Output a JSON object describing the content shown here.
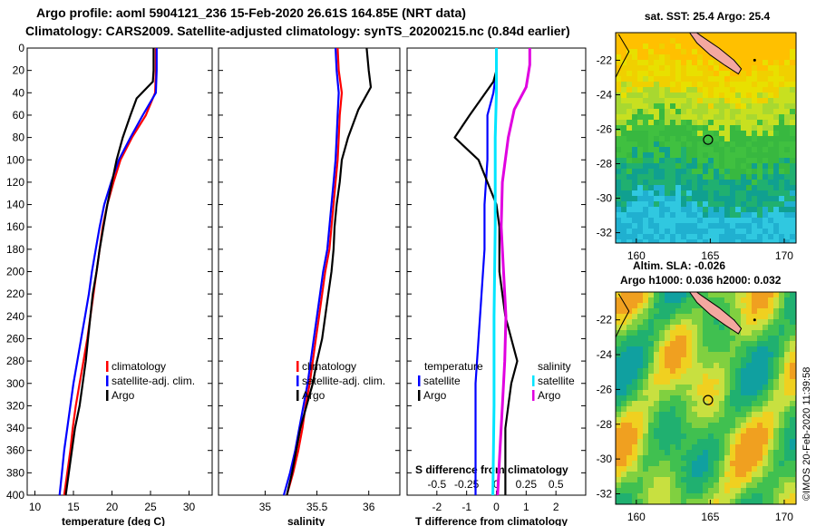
{
  "header": {
    "line1": "Argo profile: aoml 5904121_236 15-Feb-2020 26.61S 164.85E (NRT data)",
    "line2": "Climatology: CARS2009. Satellite-adjusted climatology: synTS_20200215.nc (0.84d earlier)"
  },
  "footer": {
    "credit": "©IMOS 20-Feb-2020 11:39:58"
  },
  "colors": {
    "climatology": "#ff0000",
    "satellite": "#0000ff",
    "argo": "#000000",
    "sat_salinity": "#00e5ff",
    "argo_salinity": "#e000e0"
  },
  "chart_data": [
    {
      "id": "temperature",
      "type": "line",
      "xlabel": "temperature (deg C)",
      "xlim": [
        9,
        33
      ],
      "xticks": [
        10,
        15,
        20,
        25,
        30
      ],
      "ylim": [
        0,
        400
      ],
      "yticks": [
        0,
        20,
        40,
        60,
        80,
        100,
        120,
        140,
        160,
        180,
        200,
        220,
        240,
        260,
        280,
        300,
        320,
        340,
        360,
        380,
        400
      ],
      "legend": [
        "climatology",
        "satellite-adj. clim.",
        "Argo"
      ],
      "series": [
        {
          "name": "climatology",
          "color": "#ff0000",
          "points": [
            [
              25.7,
              0
            ],
            [
              25.7,
              20
            ],
            [
              25.6,
              40
            ],
            [
              24.4,
              60
            ],
            [
              22.6,
              80
            ],
            [
              21.1,
              100
            ],
            [
              20.2,
              120
            ],
            [
              19.4,
              140
            ],
            [
              18.8,
              160
            ],
            [
              18.4,
              180
            ],
            [
              18.0,
              200
            ],
            [
              17.6,
              220
            ],
            [
              17.2,
              240
            ],
            [
              16.8,
              260
            ],
            [
              16.3,
              280
            ],
            [
              15.8,
              300
            ],
            [
              15.3,
              320
            ],
            [
              14.9,
              340
            ],
            [
              14.6,
              360
            ],
            [
              14.2,
              380
            ],
            [
              13.8,
              400
            ]
          ]
        },
        {
          "name": "satellite-adj. clim.",
          "color": "#0000ff",
          "points": [
            [
              25.8,
              0
            ],
            [
              25.8,
              20
            ],
            [
              25.7,
              40
            ],
            [
              24.0,
              60
            ],
            [
              22.4,
              80
            ],
            [
              20.9,
              100
            ],
            [
              19.9,
              120
            ],
            [
              19.0,
              140
            ],
            [
              18.4,
              160
            ],
            [
              17.9,
              180
            ],
            [
              17.4,
              200
            ],
            [
              17.0,
              220
            ],
            [
              16.5,
              240
            ],
            [
              16.0,
              260
            ],
            [
              15.5,
              280
            ],
            [
              15.0,
              300
            ],
            [
              14.6,
              320
            ],
            [
              14.2,
              340
            ],
            [
              13.8,
              360
            ],
            [
              13.5,
              380
            ],
            [
              13.2,
              400
            ]
          ]
        },
        {
          "name": "Argo",
          "color": "#000000",
          "points": [
            [
              25.4,
              0
            ],
            [
              25.4,
              20
            ],
            [
              25.3,
              30
            ],
            [
              23.2,
              45
            ],
            [
              22.4,
              60
            ],
            [
              21.4,
              80
            ],
            [
              20.6,
              100
            ],
            [
              20.0,
              120
            ],
            [
              19.4,
              140
            ],
            [
              18.9,
              160
            ],
            [
              18.4,
              180
            ],
            [
              18.0,
              200
            ],
            [
              17.5,
              220
            ],
            [
              17.2,
              240
            ],
            [
              16.9,
              260
            ],
            [
              16.6,
              280
            ],
            [
              16.2,
              300
            ],
            [
              15.8,
              320
            ],
            [
              15.2,
              340
            ],
            [
              14.8,
              360
            ],
            [
              14.4,
              380
            ],
            [
              14.0,
              400
            ]
          ]
        }
      ]
    },
    {
      "id": "salinity",
      "type": "line",
      "xlabel": "salinity",
      "xlim": [
        34.55,
        36.3
      ],
      "xticks": [
        35,
        35.5,
        36
      ],
      "xtick_labels": [
        "35",
        "35.5",
        "36"
      ],
      "ylim": [
        0,
        400
      ],
      "legend": [
        "climatology",
        "satellite-adj. clim.",
        "Argo"
      ],
      "series": [
        {
          "name": "climatology",
          "color": "#ff0000",
          "points": [
            [
              35.7,
              0
            ],
            [
              35.71,
              20
            ],
            [
              35.74,
              40
            ],
            [
              35.72,
              60
            ],
            [
              35.71,
              80
            ],
            [
              35.7,
              100
            ],
            [
              35.68,
              120
            ],
            [
              35.66,
              140
            ],
            [
              35.64,
              160
            ],
            [
              35.62,
              180
            ],
            [
              35.58,
              200
            ],
            [
              35.55,
              220
            ],
            [
              35.52,
              240
            ],
            [
              35.49,
              260
            ],
            [
              35.46,
              280
            ],
            [
              35.43,
              300
            ],
            [
              35.39,
              320
            ],
            [
              35.36,
              340
            ],
            [
              35.32,
              360
            ],
            [
              35.27,
              380
            ],
            [
              35.21,
              400
            ]
          ]
        },
        {
          "name": "satellite-adj. clim.",
          "color": "#0000ff",
          "points": [
            [
              35.68,
              0
            ],
            [
              35.69,
              20
            ],
            [
              35.71,
              40
            ],
            [
              35.7,
              60
            ],
            [
              35.69,
              80
            ],
            [
              35.68,
              100
            ],
            [
              35.66,
              120
            ],
            [
              35.64,
              140
            ],
            [
              35.62,
              160
            ],
            [
              35.6,
              180
            ],
            [
              35.56,
              200
            ],
            [
              35.53,
              220
            ],
            [
              35.5,
              240
            ],
            [
              35.47,
              260
            ],
            [
              35.44,
              280
            ],
            [
              35.41,
              300
            ],
            [
              35.37,
              320
            ],
            [
              35.33,
              340
            ],
            [
              35.29,
              360
            ],
            [
              35.24,
              380
            ],
            [
              35.18,
              400
            ]
          ]
        },
        {
          "name": "Argo",
          "color": "#000000",
          "points": [
            [
              35.98,
              0
            ],
            [
              36.0,
              20
            ],
            [
              36.02,
              35
            ],
            [
              35.9,
              55
            ],
            [
              35.8,
              80
            ],
            [
              35.74,
              100
            ],
            [
              35.72,
              120
            ],
            [
              35.69,
              140
            ],
            [
              35.67,
              160
            ],
            [
              35.66,
              180
            ],
            [
              35.64,
              200
            ],
            [
              35.61,
              220
            ],
            [
              35.58,
              240
            ],
            [
              35.55,
              260
            ],
            [
              35.5,
              280
            ],
            [
              35.46,
              300
            ],
            [
              35.4,
              320
            ],
            [
              35.34,
              340
            ],
            [
              35.3,
              360
            ],
            [
              35.26,
              380
            ],
            [
              35.21,
              400
            ]
          ]
        }
      ]
    },
    {
      "id": "difference",
      "type": "line",
      "xlabel": "T difference from climatology",
      "xlim": [
        -3,
        3
      ],
      "xticks": [
        -2,
        -1,
        0,
        1,
        2
      ],
      "ylim": [
        0,
        400
      ],
      "secondary_axis": {
        "label": "S difference from climatology",
        "ticks": [
          -0.5,
          -0.25,
          0,
          0.25,
          0.5
        ],
        "tick_labels": [
          "-0.5",
          "-0.25",
          "0",
          "0.25",
          "0.5"
        ],
        "xlim": [
          -0.75,
          0.75
        ]
      },
      "legend_temperature": {
        "title": "temperature",
        "items": [
          "satellite",
          "Argo"
        ]
      },
      "legend_salinity": {
        "title": "salinity",
        "items": [
          "satellite",
          "Argo"
        ]
      },
      "series": [
        {
          "name": "temperature satellite",
          "color": "#0000ff",
          "points": [
            [
              0.0,
              0
            ],
            [
              0.0,
              20
            ],
            [
              -0.1,
              40
            ],
            [
              -0.3,
              60
            ],
            [
              -0.3,
              80
            ],
            [
              -0.3,
              100
            ],
            [
              -0.4,
              140
            ],
            [
              -0.4,
              180
            ],
            [
              -0.5,
              220
            ],
            [
              -0.6,
              260
            ],
            [
              -0.7,
              300
            ],
            [
              -0.7,
              340
            ],
            [
              -0.7,
              380
            ],
            [
              -0.7,
              400
            ]
          ]
        },
        {
          "name": "temperature Argo",
          "color": "#000000",
          "points": [
            [
              0.0,
              0
            ],
            [
              0.0,
              20
            ],
            [
              -0.1,
              30
            ],
            [
              -0.5,
              45
            ],
            [
              -0.9,
              60
            ],
            [
              -1.4,
              80
            ],
            [
              -0.6,
              100
            ],
            [
              -0.3,
              120
            ],
            [
              0.0,
              140
            ],
            [
              0.1,
              160
            ],
            [
              0.1,
              180
            ],
            [
              0.1,
              200
            ],
            [
              0.2,
              220
            ],
            [
              0.3,
              240
            ],
            [
              0.5,
              260
            ],
            [
              0.7,
              280
            ],
            [
              0.5,
              300
            ],
            [
              0.4,
              320
            ],
            [
              0.3,
              340
            ],
            [
              0.3,
              360
            ],
            [
              0.3,
              380
            ],
            [
              0.3,
              400
            ]
          ]
        },
        {
          "name": "salinity satellite",
          "color": "#00e5ff",
          "points": [
            [
              0.0,
              0
            ],
            [
              0.0,
              40
            ],
            [
              -0.01,
              80
            ],
            [
              -0.01,
              160
            ],
            [
              -0.02,
              240
            ],
            [
              -0.02,
              320
            ],
            [
              -0.03,
              400
            ]
          ]
        },
        {
          "name": "salinity Argo",
          "color": "#e000e0",
          "points": [
            [
              0.28,
              0
            ],
            [
              0.28,
              15
            ],
            [
              0.25,
              35
            ],
            [
              0.15,
              55
            ],
            [
              0.1,
              80
            ],
            [
              0.05,
              120
            ],
            [
              0.04,
              160
            ],
            [
              0.06,
              200
            ],
            [
              0.08,
              240
            ],
            [
              0.07,
              280
            ],
            [
              0.05,
              320
            ],
            [
              0.03,
              360
            ],
            [
              0.01,
              400
            ]
          ]
        }
      ]
    },
    {
      "id": "map_sst",
      "type": "heatmap",
      "title": "sat. SST: 25.4 Argo: 25.4",
      "xticks": [
        160,
        165,
        170
      ],
      "yticks": [
        -22,
        -24,
        -26,
        -28,
        -30,
        -32
      ],
      "xlim": [
        158.6,
        170.8
      ],
      "ylim": [
        -32.6,
        -20.4
      ],
      "argo_position": [
        164.85,
        -26.61
      ]
    },
    {
      "id": "map_sla",
      "type": "heatmap",
      "title_line1": "Altim. SLA: -0.026",
      "title_line2": "Argo h1000: 0.036 h2000: 0.032",
      "xticks": [
        160,
        165,
        170
      ],
      "yticks": [
        -22,
        -24,
        -26,
        -28,
        -30,
        -32
      ],
      "xlim": [
        158.6,
        170.8
      ],
      "ylim": [
        -32.6,
        -20.4
      ],
      "argo_position": [
        164.85,
        -26.61
      ]
    }
  ]
}
